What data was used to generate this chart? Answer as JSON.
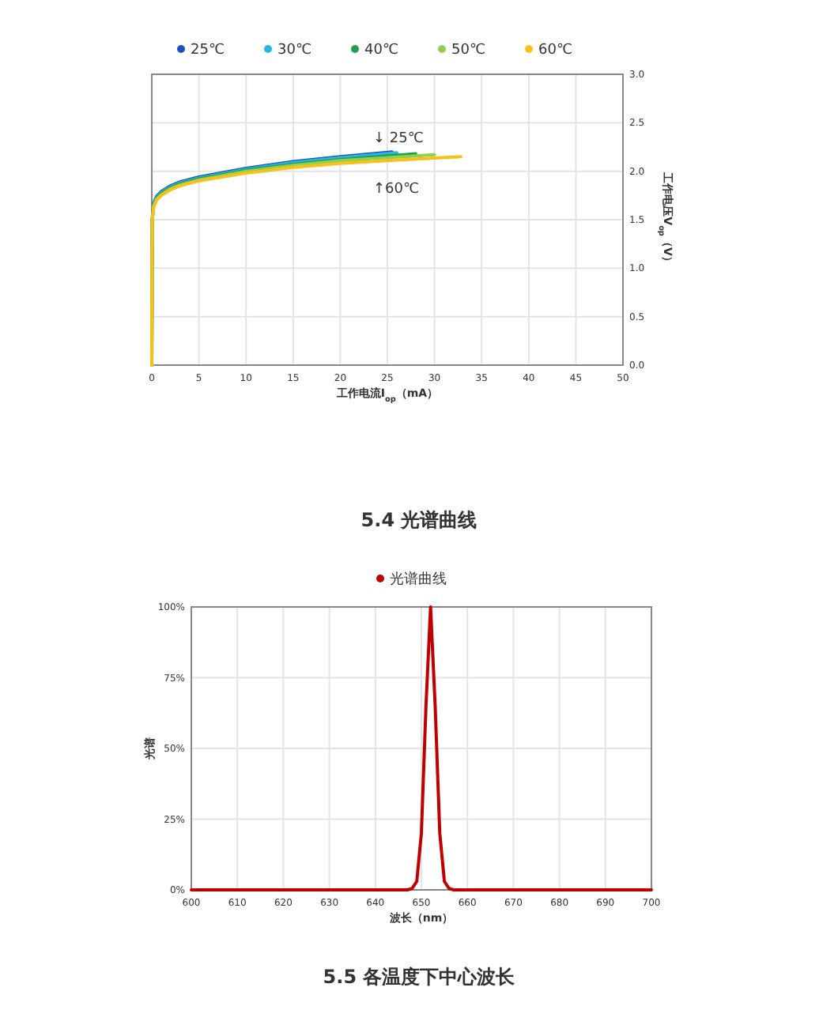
{
  "chart_data": [
    {
      "type": "line",
      "xlabel": "工作电流I$_{op}$（mA）",
      "ylabel": "工作电压V$_{op}$（V）",
      "xlim": [
        0,
        50
      ],
      "xticks": [
        0,
        5,
        10,
        15,
        20,
        25,
        30,
        35,
        40,
        45,
        50
      ],
      "ylim": [
        0,
        3
      ],
      "yticks": [
        {
          "value": 0,
          "label": "0.0"
        },
        {
          "value": 0.5,
          "label": "0.5"
        },
        {
          "value": 1,
          "label": "1.0"
        },
        {
          "value": 1.5,
          "label": "1.5"
        },
        {
          "value": 2,
          "label": "2.0"
        },
        {
          "value": 2.5,
          "label": "2.5"
        },
        {
          "value": 3,
          "label": "3.0"
        }
      ],
      "grid": true,
      "legend": "top",
      "marker": "none",
      "line_style": "solid",
      "series": [
        {
          "name": "25℃",
          "color": "#1f4fc4",
          "x": [
            0,
            0.05,
            0.2,
            0.5,
            1,
            2,
            3,
            5,
            10,
            15,
            20,
            25.5
          ],
          "values": [
            0,
            1.5,
            1.67,
            1.74,
            1.79,
            1.85,
            1.89,
            1.94,
            2.03,
            2.1,
            2.15,
            2.2
          ]
        },
        {
          "name": "30℃",
          "color": "#2bb5e6",
          "x": [
            0,
            0.05,
            0.2,
            0.5,
            1,
            2,
            3,
            5,
            10,
            15,
            20,
            26
          ],
          "values": [
            0,
            1.5,
            1.66,
            1.73,
            1.78,
            1.84,
            1.88,
            1.93,
            2.02,
            2.09,
            2.14,
            2.19
          ]
        },
        {
          "name": "40℃",
          "color": "#1ba34a",
          "x": [
            0,
            0.05,
            0.2,
            0.5,
            1,
            2,
            3,
            5,
            10,
            15,
            20,
            28
          ],
          "values": [
            0,
            1.5,
            1.65,
            1.72,
            1.77,
            1.83,
            1.87,
            1.92,
            2.01,
            2.07,
            2.12,
            2.18
          ]
        },
        {
          "name": "50℃",
          "color": "#8fd14f",
          "x": [
            0,
            0.05,
            0.2,
            0.5,
            1,
            2,
            3,
            5,
            10,
            15,
            20,
            30
          ],
          "values": [
            0,
            1.5,
            1.64,
            1.71,
            1.76,
            1.82,
            1.86,
            1.91,
            2,
            2.06,
            2.11,
            2.17
          ]
        },
        {
          "name": "60℃",
          "color": "#f5c11a",
          "x": [
            0,
            0.05,
            0.2,
            0.5,
            1,
            2,
            3,
            5,
            10,
            15,
            20,
            25,
            32.8
          ],
          "values": [
            0,
            1.5,
            1.63,
            1.7,
            1.75,
            1.81,
            1.85,
            1.9,
            1.98,
            2.04,
            2.08,
            2.11,
            2.15
          ]
        }
      ],
      "annotations": [
        "↓ 25℃",
        "↑60℃"
      ]
    },
    {
      "type": "line",
      "title": "5.4 光谱曲线",
      "xlabel": "波长（nm）",
      "ylabel": "光谱",
      "xlim": [
        600,
        700
      ],
      "xticks": [
        600,
        610,
        620,
        630,
        640,
        650,
        660,
        670,
        680,
        690,
        700
      ],
      "ylim": [
        0,
        100
      ],
      "yticks": [
        {
          "value": 0,
          "label": "0%"
        },
        {
          "value": 25,
          "label": "25%"
        },
        {
          "value": 50,
          "label": "50%"
        },
        {
          "value": 75,
          "label": "75%"
        },
        {
          "value": 100,
          "label": "100%"
        }
      ],
      "grid": true,
      "legend": "top",
      "marker": "none",
      "line_style": "solid",
      "series": [
        {
          "name": "光谱曲线",
          "color": "#c00000",
          "x": [
            600,
            647,
            648,
            649,
            650,
            651,
            652,
            653,
            654,
            655,
            656,
            657,
            700
          ],
          "values": [
            0,
            0,
            0.5,
            3,
            20,
            65,
            100,
            65,
            20,
            3,
            0.5,
            0,
            0
          ]
        }
      ],
      "annotations": [
        "5.5 各温度下中心波长"
      ]
    }
  ]
}
